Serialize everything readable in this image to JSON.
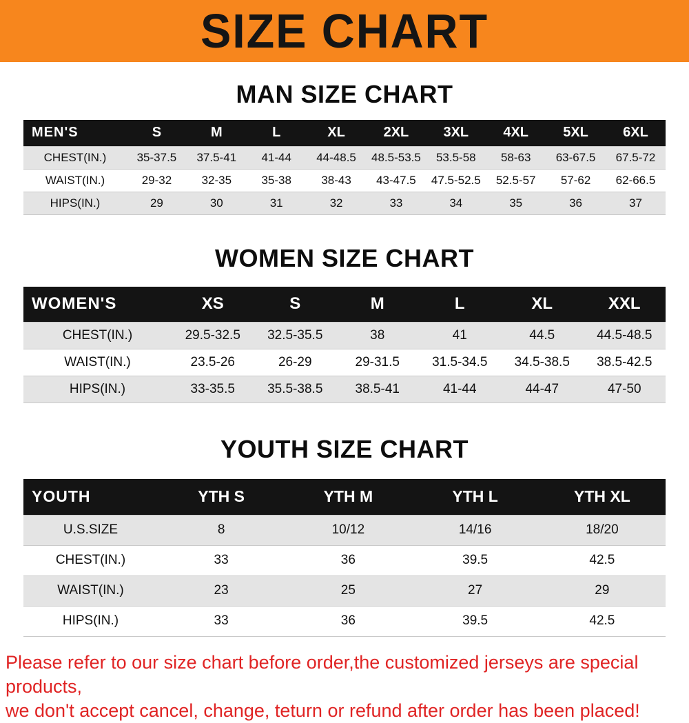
{
  "colors": {
    "banner_bg": "#f7861d",
    "table_header_bg": "#141414",
    "row_alt_bg": "#e4e4e4",
    "footer_text": "#e02424"
  },
  "banner": {
    "title": "SIZE CHART"
  },
  "sections": [
    {
      "heading": "MAN SIZE CHART",
      "table": {
        "header_label": "MEN'S",
        "columns": [
          "S",
          "M",
          "L",
          "XL",
          "2XL",
          "3XL",
          "4XL",
          "5XL",
          "6XL"
        ],
        "rows": [
          {
            "label": "CHEST(IN.)",
            "values": [
              "35-37.5",
              "37.5-41",
              "41-44",
              "44-48.5",
              "48.5-53.5",
              "53.5-58",
              "58-63",
              "63-67.5",
              "67.5-72"
            ]
          },
          {
            "label": "WAIST(IN.)",
            "values": [
              "29-32",
              "32-35",
              "35-38",
              "38-43",
              "43-47.5",
              "47.5-52.5",
              "52.5-57",
              "57-62",
              "62-66.5"
            ]
          },
          {
            "label": "HIPS(IN.)",
            "values": [
              "29",
              "30",
              "31",
              "32",
              "33",
              "34",
              "35",
              "36",
              "37"
            ]
          }
        ]
      }
    },
    {
      "heading": "WOMEN SIZE CHART",
      "table": {
        "header_label": "WOMEN'S",
        "columns": [
          "XS",
          "S",
          "M",
          "L",
          "XL",
          "XXL"
        ],
        "rows": [
          {
            "label": "CHEST(IN.)",
            "values": [
              "29.5-32.5",
              "32.5-35.5",
              "38",
              "41",
              "44.5",
              "44.5-48.5"
            ]
          },
          {
            "label": "WAIST(IN.)",
            "values": [
              "23.5-26",
              "26-29",
              "29-31.5",
              "31.5-34.5",
              "34.5-38.5",
              "38.5-42.5"
            ]
          },
          {
            "label": "HIPS(IN.)",
            "values": [
              "33-35.5",
              "35.5-38.5",
              "38.5-41",
              "41-44",
              "44-47",
              "47-50"
            ]
          }
        ]
      }
    },
    {
      "heading": "YOUTH SIZE CHART",
      "table": {
        "header_label": "YOUTH",
        "columns": [
          "YTH S",
          "YTH M",
          "YTH L",
          "YTH XL"
        ],
        "rows": [
          {
            "label": "U.S.SIZE",
            "values": [
              "8",
              "10/12",
              "14/16",
              "18/20"
            ]
          },
          {
            "label": "CHEST(IN.)",
            "values": [
              "33",
              "36",
              "39.5",
              "42.5"
            ]
          },
          {
            "label": "WAIST(IN.)",
            "values": [
              "23",
              "25",
              "27",
              "29"
            ]
          },
          {
            "label": "HIPS(IN.)",
            "values": [
              "33",
              "36",
              "39.5",
              "42.5"
            ]
          }
        ]
      }
    }
  ],
  "footer": {
    "line1": "Please refer to our size chart before order,the customized jerseys are special products,",
    "line2": "we don't accept cancel, change, teturn or refund after order has been placed!"
  }
}
